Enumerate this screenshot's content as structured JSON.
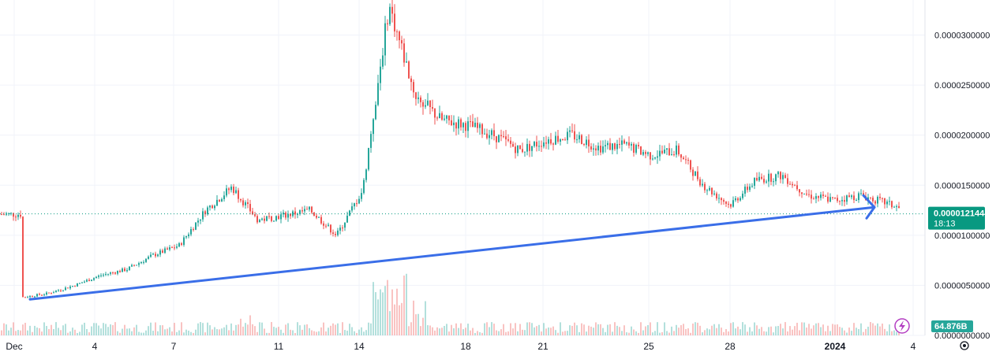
{
  "chart_data": {
    "type": "candlestick",
    "title": "",
    "x_axis": {
      "tick_labels": [
        "Dec",
        "4",
        "7",
        "11",
        "14",
        "18",
        "21",
        "25",
        "28",
        "2024",
        "4"
      ],
      "range": [
        "2023-12-01",
        "2024-01-04"
      ]
    },
    "y_axis": {
      "tick_labels": [
        "0.0000000000",
        "0.0000050000",
        "0.0000100000",
        "0.0000150000",
        "0.0000200000",
        "0.0000250000",
        "0.0000300000"
      ],
      "ticks": [
        0.0,
        5e-06,
        1e-05,
        1.5e-05,
        2e-05,
        2.5e-05,
        3e-05
      ],
      "range": [
        0.0,
        3.35e-05
      ],
      "position": "right"
    },
    "grid": true,
    "price_trajectory": {
      "approx_close_points": [
        [
          "2023-12-01",
          3.8e-06
        ],
        [
          "2023-12-02",
          4.2e-06
        ],
        [
          "2023-12-03",
          5e-06
        ],
        [
          "2023-12-04",
          6e-06
        ],
        [
          "2023-12-05",
          6.6e-06
        ],
        [
          "2023-12-06",
          8e-06
        ],
        [
          "2023-12-07",
          9e-06
        ],
        [
          "2023-12-08",
          1.25e-05
        ],
        [
          "2023-12-09",
          1.48e-05
        ],
        [
          "2023-12-10",
          1.15e-05
        ],
        [
          "2023-12-11",
          1.2e-05
        ],
        [
          "2023-12-12",
          1.25e-05
        ],
        [
          "2023-12-13",
          1e-05
        ],
        [
          "2023-12-14",
          1.45e-05
        ],
        [
          "2023-12-15",
          3.3e-05
        ],
        [
          "2023-12-16",
          2.4e-05
        ],
        [
          "2023-12-17",
          2.15e-05
        ],
        [
          "2023-12-18",
          2.1e-05
        ],
        [
          "2023-12-19",
          2e-05
        ],
        [
          "2023-12-20",
          1.85e-05
        ],
        [
          "2023-12-21",
          1.95e-05
        ],
        [
          "2023-12-22",
          2e-05
        ],
        [
          "2023-12-23",
          1.88e-05
        ],
        [
          "2023-12-24",
          1.9e-05
        ],
        [
          "2023-12-25",
          1.8e-05
        ],
        [
          "2023-12-26",
          1.85e-05
        ],
        [
          "2023-12-27",
          1.5e-05
        ],
        [
          "2023-12-28",
          1.3e-05
        ],
        [
          "2023-12-29",
          1.55e-05
        ],
        [
          "2023-12-30",
          1.6e-05
        ],
        [
          "2023-12-31",
          1.4e-05
        ],
        [
          "2024-01-01",
          1.35e-05
        ],
        [
          "2024-01-02",
          1.4e-05
        ],
        [
          "2024-01-03",
          1.32e-05
        ],
        [
          "2024-01-04",
          1.21e-05
        ]
      ]
    },
    "last_price": {
      "value": "0.0000121444",
      "countdown": "18:13",
      "color": "#089981"
    },
    "volume": {
      "label": "64.876B",
      "color": "#26a69a"
    },
    "trend_line": {
      "color": "#3a6ee8",
      "start": [
        "2023-12-01",
        3.6e-06
      ],
      "end": [
        "2024-01-03",
        1.28e-05
      ]
    },
    "colors": {
      "up": "#26a69a",
      "down": "#ef5350",
      "grid": "#f0f3fa",
      "axis_text": "#131722"
    }
  },
  "icons": {
    "indicator_icon": "lightning-bolt-icon",
    "settings_icon": "gear-icon"
  }
}
